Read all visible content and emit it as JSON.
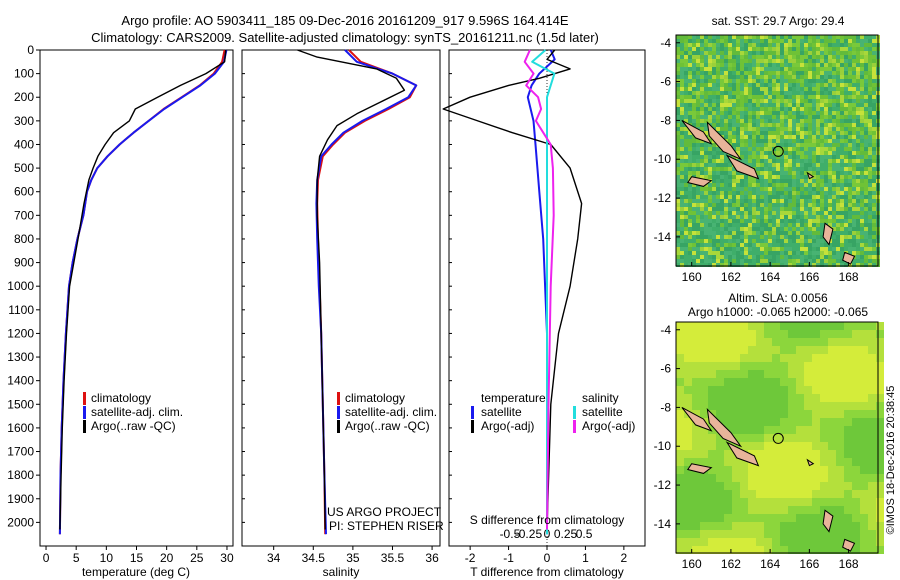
{
  "header": {
    "line1": "Argo profile: AO 5903411_185 09-Dec-2016 20161209_917 9.596S 164.414E",
    "line2": "Climatology: CARS2009. Satellite-adjusted climatology: synTS_20161211.nc (1.5d later)"
  },
  "colors": {
    "climatology": "#dd1111",
    "satellite": "#1a1aee",
    "argo": "#000000",
    "salinity_sat": "#22dddd",
    "salinity_argo": "#ee22ee",
    "land": "#e8b49a"
  },
  "chart_data": [
    {
      "type": "line",
      "name": "temperature-profile",
      "xlabel": "temperature (deg C)",
      "ylabel": "",
      "xlim": [
        -1,
        31
      ],
      "ylim": [
        2100,
        0
      ],
      "xticks": [
        0,
        5,
        10,
        15,
        20,
        25,
        30
      ],
      "yticks": [
        0,
        100,
        200,
        300,
        400,
        500,
        600,
        700,
        800,
        900,
        1000,
        1100,
        1200,
        1300,
        1400,
        1500,
        1600,
        1700,
        1800,
        1900,
        2000
      ],
      "legend": [
        "climatology",
        "satellite-adj. clim.",
        "Argo(..raw -QC)"
      ],
      "series": [
        {
          "name": "climatology",
          "color": "#dd1111",
          "x": [
            29.6,
            29.2,
            27.8,
            25.5,
            22.5,
            19.5,
            17,
            14.5,
            12.2,
            10.2,
            8.5,
            7.5,
            6.8,
            6.2,
            5.2,
            4.4,
            3.8,
            3.3,
            2.9,
            2.6,
            2.4,
            2.3
          ],
          "y": [
            0,
            50,
            100,
            150,
            200,
            250,
            300,
            350,
            400,
            450,
            500,
            550,
            600,
            700,
            800,
            900,
            1000,
            1200,
            1400,
            1600,
            1800,
            2050
          ]
        },
        {
          "name": "satellite-adj. clim.",
          "color": "#1a1aee",
          "x": [
            29.9,
            29.5,
            28,
            25.6,
            22.6,
            19.6,
            17,
            14.5,
            12.2,
            10.2,
            8.5,
            7.5,
            6.8,
            6.2,
            5.2,
            4.4,
            3.8,
            3.3,
            2.9,
            2.6,
            2.4,
            2.3
          ],
          "y": [
            0,
            50,
            100,
            150,
            200,
            250,
            300,
            350,
            400,
            450,
            500,
            550,
            600,
            700,
            800,
            900,
            1000,
            1200,
            1400,
            1600,
            1800,
            2050
          ]
        },
        {
          "name": "Argo(..raw -QC)",
          "color": "#000000",
          "x": [
            29.8,
            29.6,
            26.5,
            22.3,
            18.5,
            14.8,
            13.8,
            11.2,
            9.8,
            8.6,
            7.8,
            7.1,
            6.3,
            5.3,
            4.6,
            3.9,
            3.4,
            3.0,
            2.7,
            2.5,
            2.3
          ],
          "y": [
            0,
            50,
            100,
            150,
            200,
            250,
            300,
            350,
            400,
            450,
            500,
            550,
            650,
            800,
            900,
            1000,
            1200,
            1400,
            1600,
            1800,
            2030
          ]
        }
      ]
    },
    {
      "type": "line",
      "name": "salinity-profile",
      "xlabel": "salinity",
      "ylabel": "",
      "xlim": [
        33.6,
        36.1
      ],
      "ylim": [
        2100,
        0
      ],
      "xticks": [
        34,
        34.5,
        35,
        35.5,
        36
      ],
      "xticklabels": [
        "34",
        "34.5",
        "35",
        "35.5",
        "36"
      ],
      "legend": [
        "climatology",
        "satellite-adj. clim.",
        "Argo(..raw -QC)"
      ],
      "notes": [
        "US ARGO PROJECT",
        "PI: STEPHEN RISER"
      ],
      "series": [
        {
          "name": "climatology",
          "color": "#dd1111",
          "x": [
            34.95,
            35.1,
            35.5,
            35.8,
            35.72,
            35.45,
            35.15,
            34.9,
            34.75,
            34.62,
            34.56,
            34.55,
            34.56,
            34.58,
            34.6,
            34.62,
            34.64,
            34.65
          ],
          "y": [
            0,
            50,
            100,
            150,
            200,
            250,
            300,
            350,
            400,
            450,
            550,
            650,
            800,
            1000,
            1200,
            1500,
            1800,
            2050
          ]
        },
        {
          "name": "satellite-adj. clim.",
          "color": "#1a1aee",
          "x": [
            34.9,
            35.05,
            35.5,
            35.8,
            35.7,
            35.42,
            35.12,
            34.88,
            34.73,
            34.6,
            34.55,
            34.54,
            34.55,
            34.57,
            34.6,
            34.62,
            34.64,
            34.66
          ],
          "y": [
            0,
            50,
            100,
            150,
            200,
            250,
            300,
            350,
            400,
            450,
            550,
            650,
            800,
            1000,
            1200,
            1500,
            1800,
            2050
          ]
        },
        {
          "name": "Argo(..raw -QC)",
          "color": "#000000",
          "x": [
            34.3,
            34.55,
            35.3,
            35.55,
            35.65,
            35.35,
            35.05,
            34.8,
            34.68,
            34.58,
            34.55,
            34.55,
            34.58,
            34.6,
            34.62,
            34.64,
            34.65
          ],
          "y": [
            0,
            30,
            80,
            120,
            170,
            220,
            270,
            320,
            380,
            450,
            550,
            700,
            900,
            1200,
            1500,
            1800,
            2030
          ]
        }
      ]
    },
    {
      "type": "line",
      "name": "difference-profile",
      "xlabel": "T difference from climatology",
      "x2label": "S difference from climatology",
      "xlim": [
        -2.55,
        2.55
      ],
      "ylim": [
        2100,
        0
      ],
      "xticks": [
        -2,
        -1,
        0,
        1,
        2
      ],
      "x2ticklabels": [
        "-0.5",
        "-0.25",
        "0",
        "0.25",
        "0.5"
      ],
      "legend_left_title": "temperature",
      "legend_right_title": "salinity",
      "legend": [
        "satellite",
        "Argo(-adj)",
        "satellite",
        "Argo(-adj)"
      ],
      "series": [
        {
          "name": "T satellite",
          "color": "#1a1aee",
          "x": [
            0.1,
            0.2,
            -0.2,
            -0.4,
            -0.5,
            -0.35,
            -0.3,
            -0.25,
            -0.2,
            -0.1,
            0.0,
            0.0
          ],
          "y": [
            0,
            40,
            100,
            150,
            200,
            300,
            400,
            500,
            600,
            800,
            1200,
            2050
          ]
        },
        {
          "name": "T Argo(-adj)",
          "color": "#000000",
          "x": [
            0.2,
            0.0,
            0.6,
            -0.2,
            -1.0,
            -2.0,
            -2.7,
            -1.8,
            -0.9,
            0.1,
            0.6,
            0.9,
            0.8,
            0.6,
            0.3,
            0.1,
            0.0
          ],
          "y": [
            0,
            40,
            80,
            120,
            150,
            200,
            250,
            300,
            350,
            400,
            500,
            650,
            800,
            1000,
            1200,
            1500,
            2030
          ]
        },
        {
          "name": "S satellite",
          "color": "#22dddd",
          "x": [
            -0.02,
            -0.2,
            0.1,
            0.0,
            0.0,
            0.0,
            0.0
          ],
          "y": [
            0,
            50,
            100,
            200,
            600,
            1200,
            2050
          ]
        },
        {
          "name": "S Argo(-adj)",
          "color": "#ee22ee",
          "x": [
            -0.23,
            -0.3,
            -0.18,
            -0.28,
            -0.12,
            -0.08,
            -0.15,
            -0.05,
            0.05,
            0.08,
            0.09,
            0.05,
            0.02,
            0.0
          ],
          "y": [
            0,
            50,
            100,
            150,
            200,
            250,
            300,
            350,
            400,
            500,
            700,
            1000,
            1500,
            2030
          ]
        }
      ]
    },
    {
      "type": "heatmap",
      "name": "sst-map",
      "title": "sat. SST: 29.7 Argo: 29.4",
      "xlim": [
        159.2,
        169.5
      ],
      "ylim": [
        -15.5,
        -3.6
      ],
      "xticks": [
        160,
        162,
        164,
        166,
        168
      ],
      "yticks": [
        -4,
        -6,
        -8,
        -10,
        -12,
        -14
      ],
      "argo_position": {
        "lon": 164.414,
        "lat": -9.596
      }
    },
    {
      "type": "heatmap",
      "name": "sla-map",
      "title": "Altim. SLA: 0.0056",
      "subtitle": "Argo h1000: -0.065 h2000: -0.065",
      "xlim": [
        159.2,
        169.5
      ],
      "ylim": [
        -15.5,
        -3.6
      ],
      "xticks": [
        160,
        162,
        164,
        166,
        168
      ],
      "yticks": [
        -4,
        -6,
        -8,
        -10,
        -12,
        -14
      ],
      "argo_position": {
        "lon": 164.414,
        "lat": -9.596
      }
    }
  ],
  "credit": "©IMOS 18-Dec-2016 20:38:45"
}
